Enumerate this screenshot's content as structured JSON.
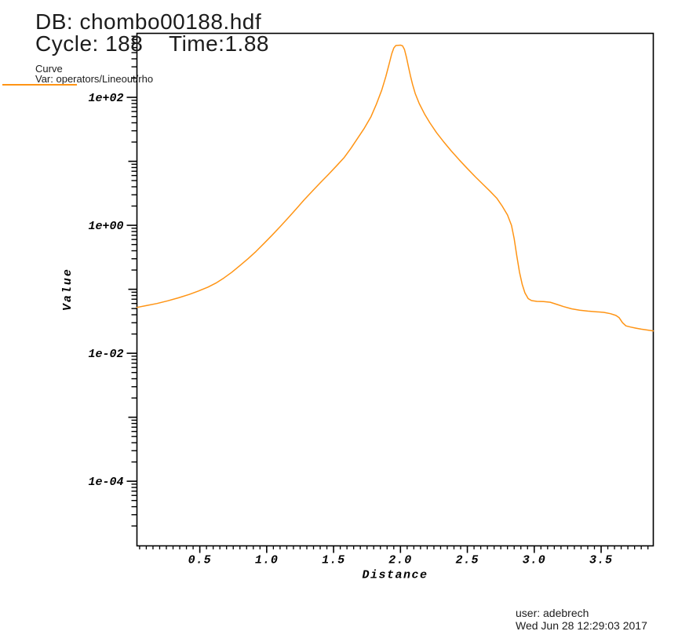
{
  "header": {
    "db_line": "DB: chombo00188.hdf",
    "cycle_label": "Cycle: 188",
    "time_label": "Time:1.88"
  },
  "legend": {
    "title": "Curve",
    "var_label": "Var: operators/Lineout/rho",
    "swatch_color": "#ff9414"
  },
  "footer": {
    "user_line": "user: adebrech",
    "date_line": "Wed Jun 28 12:29:03 2017"
  },
  "chart_data": {
    "type": "line",
    "title": "",
    "xlabel": "Distance",
    "ylabel": "Value",
    "grid": false,
    "legend_position": "top-left-outside",
    "log_y": true,
    "xlim": [
      0.03,
      3.89
    ],
    "ylim_log10": [
      -5.01,
      3.0
    ],
    "x_ticks": [
      0.5,
      1.0,
      1.5,
      2.0,
      2.5,
      3.0,
      3.5
    ],
    "x_tick_labels": [
      "0.5",
      "1.0",
      "1.5",
      "2.0",
      "2.5",
      "3.0",
      "3.5"
    ],
    "x_minor_step": 0.05,
    "y_tick_labels": [
      "1e+02",
      "1e+00",
      "1e-02",
      "1e-04"
    ],
    "y_tick_exponents": [
      2,
      0,
      -2,
      -4
    ],
    "axis_color": "#000000",
    "series": [
      {
        "name": "operators/Lineout/rho",
        "color": "#ff9414",
        "points": [
          [
            0.03,
            0.052
          ],
          [
            0.1,
            0.0555
          ],
          [
            0.18,
            0.06
          ],
          [
            0.26,
            0.066
          ],
          [
            0.34,
            0.0735
          ],
          [
            0.42,
            0.083
          ],
          [
            0.49,
            0.094
          ],
          [
            0.56,
            0.108
          ],
          [
            0.62,
            0.125
          ],
          [
            0.68,
            0.15
          ],
          [
            0.74,
            0.185
          ],
          [
            0.8,
            0.235
          ],
          [
            0.86,
            0.3
          ],
          [
            0.92,
            0.39
          ],
          [
            0.98,
            0.52
          ],
          [
            1.04,
            0.7
          ],
          [
            1.1,
            0.95
          ],
          [
            1.16,
            1.3
          ],
          [
            1.22,
            1.8
          ],
          [
            1.28,
            2.5
          ],
          [
            1.34,
            3.4
          ],
          [
            1.4,
            4.6
          ],
          [
            1.46,
            6.2
          ],
          [
            1.52,
            8.4
          ],
          [
            1.58,
            11.5
          ],
          [
            1.63,
            16
          ],
          [
            1.68,
            23
          ],
          [
            1.73,
            33
          ],
          [
            1.78,
            50
          ],
          [
            1.82,
            78
          ],
          [
            1.86,
            130
          ],
          [
            1.89,
            210
          ],
          [
            1.915,
            330
          ],
          [
            1.935,
            480
          ],
          [
            1.95,
            590
          ],
          [
            1.965,
            645
          ],
          [
            2.0,
            655
          ],
          [
            2.015,
            640
          ],
          [
            2.03,
            560
          ],
          [
            2.045,
            420
          ],
          [
            2.06,
            300
          ],
          [
            2.075,
            215
          ],
          [
            2.09,
            160
          ],
          [
            2.11,
            115
          ],
          [
            2.14,
            80
          ],
          [
            2.18,
            55
          ],
          [
            2.22,
            40
          ],
          [
            2.27,
            28
          ],
          [
            2.32,
            20.5
          ],
          [
            2.38,
            14.5
          ],
          [
            2.44,
            10.5
          ],
          [
            2.5,
            7.7
          ],
          [
            2.56,
            5.7
          ],
          [
            2.62,
            4.3
          ],
          [
            2.67,
            3.4
          ],
          [
            2.72,
            2.65
          ],
          [
            2.76,
            2.0
          ],
          [
            2.8,
            1.45
          ],
          [
            2.83,
            1.0
          ],
          [
            2.85,
            0.62
          ],
          [
            2.87,
            0.33
          ],
          [
            2.89,
            0.185
          ],
          [
            2.91,
            0.12
          ],
          [
            2.93,
            0.088
          ],
          [
            2.955,
            0.0715
          ],
          [
            2.98,
            0.0665
          ],
          [
            3.02,
            0.0648
          ],
          [
            3.07,
            0.0642
          ],
          [
            3.12,
            0.0628
          ],
          [
            3.17,
            0.058
          ],
          [
            3.22,
            0.0535
          ],
          [
            3.28,
            0.0495
          ],
          [
            3.34,
            0.047
          ],
          [
            3.4,
            0.0456
          ],
          [
            3.46,
            0.0446
          ],
          [
            3.52,
            0.0436
          ],
          [
            3.57,
            0.0415
          ],
          [
            3.61,
            0.039
          ],
          [
            3.635,
            0.036
          ],
          [
            3.66,
            0.03
          ],
          [
            3.685,
            0.0268
          ],
          [
            3.72,
            0.0257
          ],
          [
            3.76,
            0.0247
          ],
          [
            3.8,
            0.0238
          ],
          [
            3.85,
            0.023
          ],
          [
            3.89,
            0.0224
          ]
        ]
      }
    ]
  }
}
